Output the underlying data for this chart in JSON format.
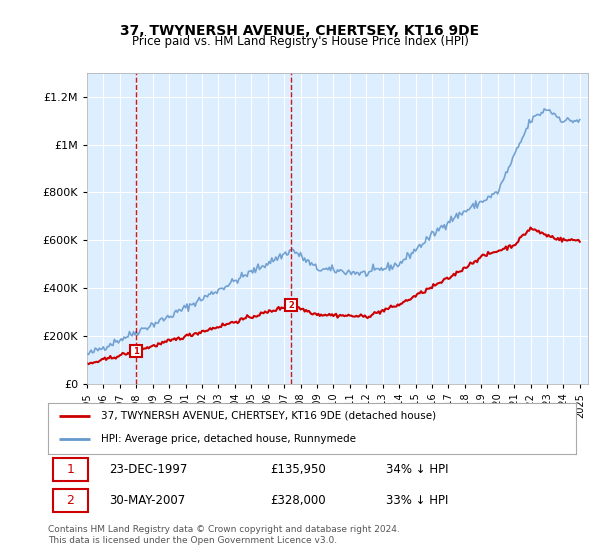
{
  "title": "37, TWYNERSH AVENUE, CHERTSEY, KT16 9DE",
  "subtitle": "Price paid vs. HM Land Registry's House Price Index (HPI)",
  "red_label": "37, TWYNERSH AVENUE, CHERTSEY, KT16 9DE (detached house)",
  "blue_label": "HPI: Average price, detached house, Runnymede",
  "footnote": "Contains HM Land Registry data © Crown copyright and database right 2024.\nThis data is licensed under the Open Government Licence v3.0.",
  "transaction1": {
    "label": "1",
    "date": "23-DEC-1997",
    "price": "£135,950",
    "hpi": "34% ↓ HPI"
  },
  "transaction2": {
    "label": "2",
    "date": "30-MAY-2007",
    "price": "£328,000",
    "hpi": "33% ↓ HPI"
  },
  "ylim": [
    0,
    1300000
  ],
  "yticks": [
    0,
    200000,
    400000,
    600000,
    800000,
    1000000,
    1200000
  ],
  "background_color": "#ffffff",
  "plot_bg_color": "#ddeeff",
  "grid_color": "#ffffff",
  "red_color": "#cc0000",
  "blue_color": "#6699cc",
  "dashed_color": "#cc0000",
  "marker1_x": 1997.97,
  "marker1_y": 135950,
  "marker2_x": 2007.41,
  "marker2_y": 328000,
  "xmin": 1995,
  "xmax": 2025.5
}
